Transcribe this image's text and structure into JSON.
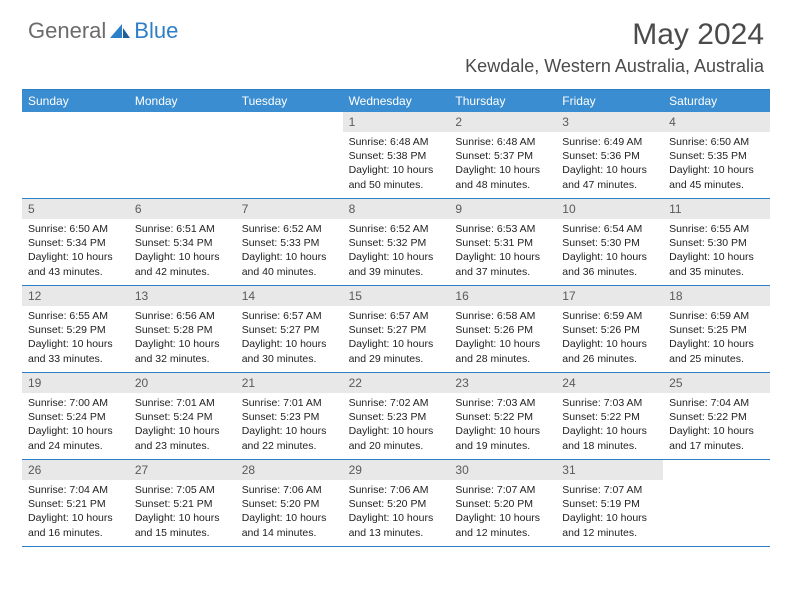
{
  "brand": {
    "general": "General",
    "blue": "Blue"
  },
  "title": "May 2024",
  "location": "Kewdale, Western Australia, Australia",
  "colors": {
    "header_blue": "#3a8dd0",
    "rule_blue": "#2d7fc7",
    "daynum_bg": "#e8e8e8",
    "text_gray": "#4b4b4b"
  },
  "day_names": [
    "Sunday",
    "Monday",
    "Tuesday",
    "Wednesday",
    "Thursday",
    "Friday",
    "Saturday"
  ],
  "weeks": [
    [
      null,
      null,
      null,
      {
        "n": "1",
        "sunrise": "6:48 AM",
        "sunset": "5:38 PM",
        "daylight": "10 hours and 50 minutes."
      },
      {
        "n": "2",
        "sunrise": "6:48 AM",
        "sunset": "5:37 PM",
        "daylight": "10 hours and 48 minutes."
      },
      {
        "n": "3",
        "sunrise": "6:49 AM",
        "sunset": "5:36 PM",
        "daylight": "10 hours and 47 minutes."
      },
      {
        "n": "4",
        "sunrise": "6:50 AM",
        "sunset": "5:35 PM",
        "daylight": "10 hours and 45 minutes."
      }
    ],
    [
      {
        "n": "5",
        "sunrise": "6:50 AM",
        "sunset": "5:34 PM",
        "daylight": "10 hours and 43 minutes."
      },
      {
        "n": "6",
        "sunrise": "6:51 AM",
        "sunset": "5:34 PM",
        "daylight": "10 hours and 42 minutes."
      },
      {
        "n": "7",
        "sunrise": "6:52 AM",
        "sunset": "5:33 PM",
        "daylight": "10 hours and 40 minutes."
      },
      {
        "n": "8",
        "sunrise": "6:52 AM",
        "sunset": "5:32 PM",
        "daylight": "10 hours and 39 minutes."
      },
      {
        "n": "9",
        "sunrise": "6:53 AM",
        "sunset": "5:31 PM",
        "daylight": "10 hours and 37 minutes."
      },
      {
        "n": "10",
        "sunrise": "6:54 AM",
        "sunset": "5:30 PM",
        "daylight": "10 hours and 36 minutes."
      },
      {
        "n": "11",
        "sunrise": "6:55 AM",
        "sunset": "5:30 PM",
        "daylight": "10 hours and 35 minutes."
      }
    ],
    [
      {
        "n": "12",
        "sunrise": "6:55 AM",
        "sunset": "5:29 PM",
        "daylight": "10 hours and 33 minutes."
      },
      {
        "n": "13",
        "sunrise": "6:56 AM",
        "sunset": "5:28 PM",
        "daylight": "10 hours and 32 minutes."
      },
      {
        "n": "14",
        "sunrise": "6:57 AM",
        "sunset": "5:27 PM",
        "daylight": "10 hours and 30 minutes."
      },
      {
        "n": "15",
        "sunrise": "6:57 AM",
        "sunset": "5:27 PM",
        "daylight": "10 hours and 29 minutes."
      },
      {
        "n": "16",
        "sunrise": "6:58 AM",
        "sunset": "5:26 PM",
        "daylight": "10 hours and 28 minutes."
      },
      {
        "n": "17",
        "sunrise": "6:59 AM",
        "sunset": "5:26 PM",
        "daylight": "10 hours and 26 minutes."
      },
      {
        "n": "18",
        "sunrise": "6:59 AM",
        "sunset": "5:25 PM",
        "daylight": "10 hours and 25 minutes."
      }
    ],
    [
      {
        "n": "19",
        "sunrise": "7:00 AM",
        "sunset": "5:24 PM",
        "daylight": "10 hours and 24 minutes."
      },
      {
        "n": "20",
        "sunrise": "7:01 AM",
        "sunset": "5:24 PM",
        "daylight": "10 hours and 23 minutes."
      },
      {
        "n": "21",
        "sunrise": "7:01 AM",
        "sunset": "5:23 PM",
        "daylight": "10 hours and 22 minutes."
      },
      {
        "n": "22",
        "sunrise": "7:02 AM",
        "sunset": "5:23 PM",
        "daylight": "10 hours and 20 minutes."
      },
      {
        "n": "23",
        "sunrise": "7:03 AM",
        "sunset": "5:22 PM",
        "daylight": "10 hours and 19 minutes."
      },
      {
        "n": "24",
        "sunrise": "7:03 AM",
        "sunset": "5:22 PM",
        "daylight": "10 hours and 18 minutes."
      },
      {
        "n": "25",
        "sunrise": "7:04 AM",
        "sunset": "5:22 PM",
        "daylight": "10 hours and 17 minutes."
      }
    ],
    [
      {
        "n": "26",
        "sunrise": "7:04 AM",
        "sunset": "5:21 PM",
        "daylight": "10 hours and 16 minutes."
      },
      {
        "n": "27",
        "sunrise": "7:05 AM",
        "sunset": "5:21 PM",
        "daylight": "10 hours and 15 minutes."
      },
      {
        "n": "28",
        "sunrise": "7:06 AM",
        "sunset": "5:20 PM",
        "daylight": "10 hours and 14 minutes."
      },
      {
        "n": "29",
        "sunrise": "7:06 AM",
        "sunset": "5:20 PM",
        "daylight": "10 hours and 13 minutes."
      },
      {
        "n": "30",
        "sunrise": "7:07 AM",
        "sunset": "5:20 PM",
        "daylight": "10 hours and 12 minutes."
      },
      {
        "n": "31",
        "sunrise": "7:07 AM",
        "sunset": "5:19 PM",
        "daylight": "10 hours and 12 minutes."
      },
      null
    ]
  ],
  "labels": {
    "sunrise": "Sunrise: ",
    "sunset": "Sunset: ",
    "daylight": "Daylight: "
  }
}
